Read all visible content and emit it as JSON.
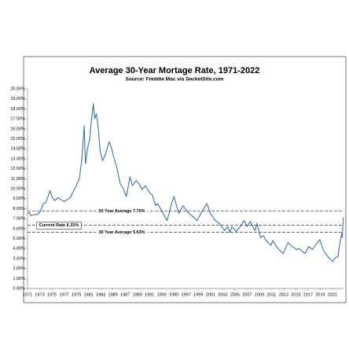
{
  "chart_data": {
    "type": "line",
    "title": "Average 30-Year Mortage Rate, 1971-2022",
    "subtitle": "Source: Freddie Mac via SocketSite.com",
    "color": "#3f72a8",
    "x": [
      1971,
      1971.3,
      1971.6,
      1972,
      1972.5,
      1973,
      1973.6,
      1974,
      1974.7,
      1975,
      1975.5,
      1976,
      1976.5,
      1977,
      1977.5,
      1978,
      1978.5,
      1979,
      1979.5,
      1979.9,
      1980.3,
      1980.5,
      1980.9,
      1981.2,
      1981.5,
      1981.8,
      1982,
      1982.3,
      1982.6,
      1982.9,
      1983.3,
      1983.8,
      1984.4,
      1984.8,
      1985.2,
      1985.6,
      1986.2,
      1986.7,
      1987.2,
      1987.8,
      1988.2,
      1988.8,
      1989.3,
      1989.8,
      1990.3,
      1990.9,
      1991.5,
      1992,
      1992.3,
      1992.8,
      1993.5,
      1993.9,
      1994.6,
      1995,
      1995.8,
      1996.5,
      1997.3,
      1998.5,
      1998.8,
      1999.5,
      2000.4,
      2001,
      2001.8,
      2002.5,
      2003.3,
      2003.8,
      2004.2,
      2004.5,
      2005.2,
      2006,
      2006.5,
      2007,
      2007.5,
      2008.3,
      2008.6,
      2009.2,
      2009.7,
      2010,
      2010.9,
      2011.2,
      2011.9,
      2012.9,
      2013.7,
      2014.2,
      2015.1,
      2015.5,
      2016.5,
      2017.1,
      2017.7,
      2018.9,
      2019.6,
      2020.5,
      2021,
      2021.5,
      2021.9,
      2022.2,
      2022.5,
      2022.6,
      2022.7,
      2022.8
    ],
    "values": [
      7.5,
      7.6,
      7.3,
      7.4,
      7.4,
      7.6,
      8.5,
      8.6,
      9.8,
      9.2,
      8.8,
      9.1,
      8.9,
      8.7,
      8.9,
      9.1,
      9.7,
      10.3,
      11,
      12.9,
      16.3,
      12.5,
      14.2,
      15,
      17,
      18.5,
      17,
      17.5,
      16,
      13.8,
      12.8,
      13.5,
      14.7,
      14,
      13,
      12.2,
      10.5,
      10,
      9.2,
      11.2,
      10.3,
      10.8,
      10.5,
      9.9,
      10.3,
      9.7,
      9.3,
      8.3,
      8.5,
      8,
      7.2,
      6.8,
      8.5,
      9.2,
      7.5,
      8.3,
      7.6,
      7,
      6.8,
      7.6,
      8.5,
      7.5,
      6.8,
      6.5,
      5.8,
      6.2,
      5.6,
      6.2,
      5.7,
      6.3,
      6.8,
      6.2,
      6.7,
      5.8,
      6.5,
      5.1,
      5.3,
      4.9,
      4.3,
      4.8,
      4.1,
      3.5,
      4.6,
      4.3,
      3.9,
      4,
      3.5,
      4.2,
      3.9,
      4.9,
      3.7,
      3,
      2.7,
      3.1,
      3.2,
      4.5,
      5.5,
      5.1,
      6.3,
      7.1
    ],
    "xlim": [
      1971,
      2022.8
    ],
    "xticks": [
      1971,
      1973,
      1975,
      1977,
      1979,
      1981,
      1983,
      1985,
      1987,
      1989,
      1991,
      1993,
      1995,
      1997,
      1999,
      2001,
      2003,
      2005,
      2007,
      2009,
      2011,
      2013,
      2015,
      2017,
      2019,
      2021
    ],
    "ylim": [
      0,
      20
    ],
    "yticks": [
      {
        "value": 0,
        "label": "0.00%"
      },
      {
        "value": 1,
        "label": "1.00%"
      },
      {
        "value": 2,
        "label": "2.00%"
      },
      {
        "value": 3,
        "label": "3.00%"
      },
      {
        "value": 4,
        "label": "4.00%"
      },
      {
        "value": 5,
        "label": "5.00%"
      },
      {
        "value": 6,
        "label": "6.00%"
      },
      {
        "value": 7,
        "label": "7.00%"
      },
      {
        "value": 8,
        "label": "8.00%"
      },
      {
        "value": 9,
        "label": "9.00%"
      },
      {
        "value": 10,
        "label": "10.00%"
      },
      {
        "value": 11,
        "label": "11.00%"
      },
      {
        "value": 12,
        "label": "12.00%"
      },
      {
        "value": 13,
        "label": "13.00%"
      },
      {
        "value": 14,
        "label": "14.00%"
      },
      {
        "value": 15,
        "label": "15.00%"
      },
      {
        "value": 16,
        "label": "16.00%"
      },
      {
        "value": 17,
        "label": "17.00%"
      },
      {
        "value": 18,
        "label": "18.00%"
      },
      {
        "value": 19,
        "label": "19.00%"
      },
      {
        "value": 20,
        "label": "20.00%"
      }
    ],
    "reference_lines": [
      {
        "label": "50 Year Average 7.76%",
        "value": 7.76
      },
      {
        "label": "Current Rate 6.33%",
        "value": 6.33
      },
      {
        "label": "30 Year Average 5.63%",
        "value": 5.63
      }
    ]
  }
}
